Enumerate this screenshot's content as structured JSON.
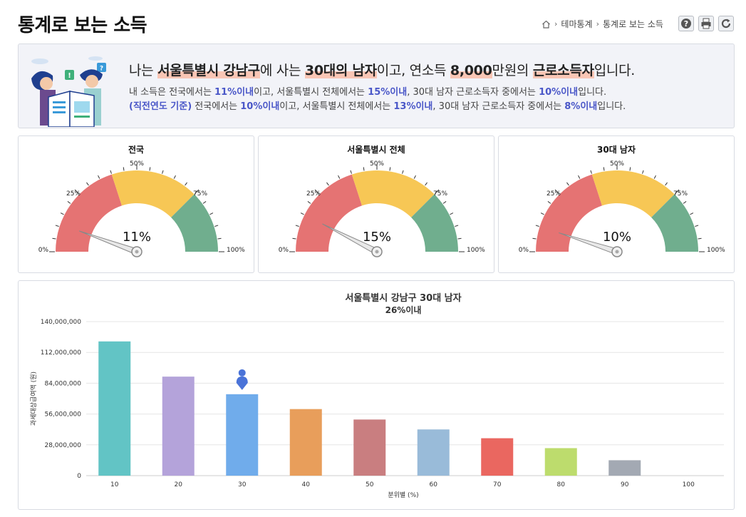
{
  "header": {
    "title": "통계로 보는 소득",
    "breadcrumb": [
      "테마통계",
      "통계로 보는 소득"
    ],
    "icons": [
      "home-icon",
      "help-icon",
      "print-icon",
      "refresh-icon"
    ]
  },
  "summary": {
    "line1": {
      "p1": "나는 ",
      "region": "서울특별시 강남구",
      "p2": "에 사는 ",
      "age_gender": "30대의 남자",
      "p3": "이고, 연소득 ",
      "income": "8,000",
      "p4": "만원의 ",
      "type": "근로소득자",
      "p5": "입니다."
    },
    "line2": {
      "p1": "내 소득은 전국에서는 ",
      "v1": "11%이내",
      "p2": "이고, 서울특별시 전체에서는 ",
      "v2": "15%이내",
      "p3": ", 30대 남자 근로소득자 중에서는 ",
      "v3": "10%이내",
      "p4": "입니다."
    },
    "line3": {
      "prefix": "(직전연도 기준)",
      "p1": " 전국에서는 ",
      "v1": "10%이내",
      "p2": "이고, 서울특별시 전체에서는 ",
      "v2": "13%이내",
      "p3": ", 30대 남자 근로소득자 중에서는 ",
      "v3": "8%이내",
      "p4": "입니다."
    }
  },
  "gauges": [
    {
      "title": "전국",
      "value": 11,
      "display": "11%"
    },
    {
      "title": "서울특별시 전체",
      "value": 15,
      "display": "15%"
    },
    {
      "title": "30대 남자",
      "value": 10,
      "display": "10%"
    }
  ],
  "gauge_ticks": [
    "0%",
    "25%",
    "50%",
    "75%",
    "100%"
  ],
  "gauge_colors": {
    "red": "#e57373",
    "yellow": "#f7c755",
    "green": "#70ae8e"
  },
  "chart_data": {
    "type": "bar",
    "title": "서울특별시 강남구 30대 남자",
    "subtitle": "26%이내",
    "xlabel": "분위별 (%)",
    "ylabel": "과세대상급여액 (원)",
    "categories": [
      "10",
      "20",
      "30",
      "40",
      "50",
      "60",
      "70",
      "80",
      "90",
      "100"
    ],
    "values": [
      122000000,
      90000000,
      74000000,
      60500000,
      51000000,
      42000000,
      34000000,
      25000000,
      14000000,
      0
    ],
    "colors": [
      "#62c4c5",
      "#b4a3da",
      "#70aceb",
      "#e89e5b",
      "#c97e80",
      "#99bbd9",
      "#ea6760",
      "#bddc6d",
      "#a3a9b3",
      "#cccccc"
    ],
    "ylim": [
      0,
      140000000
    ],
    "yticks": [
      0,
      28000000,
      56000000,
      84000000,
      112000000,
      140000000
    ],
    "ytick_labels": [
      "0",
      "28,000,000",
      "56,000,000",
      "84,000,000",
      "112,000,000",
      "140,000,000"
    ],
    "marker_category": "30",
    "marker_icon": "person-marker-icon",
    "grid": true
  }
}
